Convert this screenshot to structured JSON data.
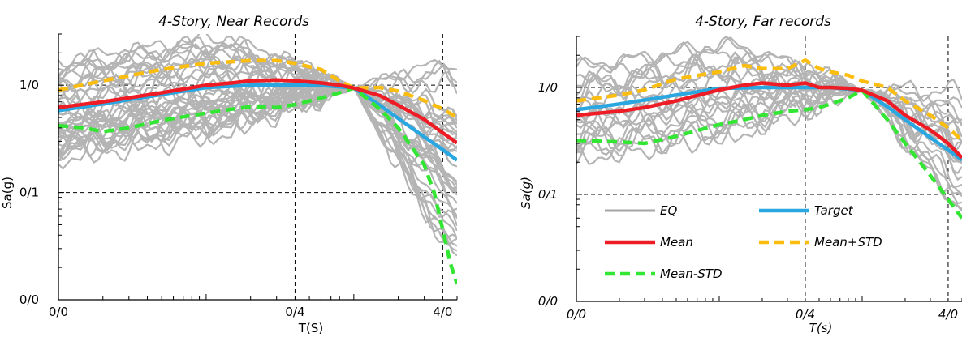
{
  "chart_data": [
    {
      "type": "line",
      "title": "4-Story, Near Records",
      "xlabel": "T(S)",
      "ylabel": "Sa(g)",
      "x_scale": "log",
      "y_scale": "log",
      "xlim": [
        0.01,
        5
      ],
      "ylim": [
        0.01,
        3
      ],
      "x_ticks": [
        {
          "v": 0.01,
          "label": "0/0"
        },
        {
          "v": 0.4,
          "label": "0/4"
        },
        {
          "v": 4,
          "label": "4/0"
        }
      ],
      "y_ticks": [
        {
          "v": 0.01,
          "label": "0/0"
        },
        {
          "v": 0.1,
          "label": "0/1"
        },
        {
          "v": 1,
          "label": "1/0"
        }
      ],
      "grid_x": [
        0.4,
        4
      ],
      "grid_y": [
        0.1,
        1
      ],
      "eq_count": 40,
      "eq_anchor_T": 1.0,
      "eq_anchor_Sa": 0.94,
      "series": [
        {
          "key": "target",
          "color": "#2aa7e0",
          "dash": false,
          "x": [
            0.01,
            0.02,
            0.05,
            0.1,
            0.2,
            0.4,
            0.6,
            1.0,
            1.5,
            2.0,
            3.0,
            4.0,
            5.0
          ],
          "y": [
            0.58,
            0.67,
            0.82,
            0.95,
            1.0,
            1.0,
            1.0,
            0.94,
            0.65,
            0.49,
            0.33,
            0.25,
            0.2
          ]
        },
        {
          "key": "mean",
          "color": "#ee1c25",
          "dash": false,
          "x": [
            0.01,
            0.02,
            0.05,
            0.1,
            0.15,
            0.2,
            0.3,
            0.4,
            0.6,
            0.8,
            1.0,
            1.5,
            2.0,
            3.0,
            4.0,
            5.0
          ],
          "y": [
            0.62,
            0.7,
            0.85,
            1.0,
            1.05,
            1.1,
            1.12,
            1.1,
            1.05,
            1.0,
            0.94,
            0.8,
            0.65,
            0.48,
            0.36,
            0.29
          ]
        },
        {
          "key": "mean_plus_std",
          "color": "#fbbd0f",
          "dash": true,
          "x": [
            0.01,
            0.02,
            0.05,
            0.1,
            0.2,
            0.3,
            0.4,
            0.6,
            0.8,
            1.0,
            1.5,
            2.0,
            3.0,
            4.0,
            5.0
          ],
          "y": [
            0.9,
            1.1,
            1.4,
            1.6,
            1.7,
            1.7,
            1.6,
            1.4,
            1.1,
            0.94,
            0.95,
            0.88,
            0.72,
            0.6,
            0.5
          ]
        },
        {
          "key": "mean_minus_std",
          "color": "#33e633",
          "dash": true,
          "x": [
            0.01,
            0.015,
            0.02,
            0.03,
            0.05,
            0.1,
            0.15,
            0.2,
            0.3,
            0.4,
            0.6,
            0.8,
            1.0,
            1.5,
            2.0,
            3.0,
            3.5,
            4.0,
            4.5,
            5.0
          ],
          "y": [
            0.42,
            0.4,
            0.37,
            0.4,
            0.47,
            0.55,
            0.6,
            0.63,
            0.62,
            0.66,
            0.76,
            0.85,
            0.94,
            0.6,
            0.4,
            0.18,
            0.1,
            0.045,
            0.022,
            0.014
          ]
        }
      ]
    },
    {
      "type": "line",
      "title": "4-Story, Far records",
      "xlabel": "T(s)",
      "ylabel": "Sa(g)",
      "x_scale": "log",
      "y_scale": "log",
      "xlim": [
        0.01,
        5
      ],
      "ylim": [
        0.01,
        3
      ],
      "x_ticks": [
        {
          "v": 0.01,
          "label": "0/0"
        },
        {
          "v": 0.4,
          "label": "0/4"
        },
        {
          "v": 4,
          "label": "4/0"
        }
      ],
      "y_ticks": [
        {
          "v": 0.01,
          "label": "0/0"
        },
        {
          "v": 0.1,
          "label": "0/1"
        },
        {
          "v": 1,
          "label": "1/0"
        }
      ],
      "grid_x": [
        0.4,
        4
      ],
      "grid_y": [
        0.1,
        1
      ],
      "eq_count": 22,
      "eq_anchor_T": 1.0,
      "eq_anchor_Sa": 0.94,
      "legend": {
        "placement": "lower-left",
        "items": [
          {
            "key": "eq",
            "label": "EQ",
            "color": "#a6a6a6",
            "dash": false
          },
          {
            "key": "target",
            "label": "Target",
            "color": "#2aa7e0",
            "dash": false
          },
          {
            "key": "mean",
            "label": "Mean",
            "color": "#ee1c25",
            "dash": false
          },
          {
            "key": "mean_plus_std",
            "label": "Mean+STD",
            "color": "#fbbd0f",
            "dash": true
          },
          {
            "key": "mean_minus_std",
            "label": "Mean-STD",
            "color": "#33e633",
            "dash": true
          }
        ]
      },
      "series": [
        {
          "key": "target",
          "color": "#2aa7e0",
          "dash": false,
          "x": [
            0.01,
            0.02,
            0.05,
            0.1,
            0.2,
            0.4,
            0.6,
            1.0,
            1.5,
            2.0,
            3.0,
            4.0,
            5.0
          ],
          "y": [
            0.62,
            0.7,
            0.85,
            0.98,
            1.0,
            1.0,
            1.0,
            0.94,
            0.66,
            0.5,
            0.34,
            0.26,
            0.21
          ]
        },
        {
          "key": "mean",
          "color": "#ee1c25",
          "dash": false,
          "x": [
            0.01,
            0.02,
            0.03,
            0.05,
            0.1,
            0.15,
            0.2,
            0.3,
            0.4,
            0.5,
            0.6,
            0.8,
            1.0,
            1.5,
            2.0,
            3.0,
            4.0,
            5.0
          ],
          "y": [
            0.55,
            0.6,
            0.65,
            0.75,
            0.95,
            1.05,
            1.1,
            1.05,
            1.1,
            1.0,
            1.0,
            0.98,
            0.94,
            0.75,
            0.55,
            0.4,
            0.3,
            0.22
          ]
        },
        {
          "key": "mean_plus_std",
          "color": "#fbbd0f",
          "dash": true,
          "x": [
            0.01,
            0.02,
            0.03,
            0.05,
            0.1,
            0.15,
            0.2,
            0.3,
            0.4,
            0.5,
            0.6,
            0.8,
            1.0,
            1.5,
            2.0,
            3.0,
            4.0,
            5.0
          ],
          "y": [
            0.75,
            0.85,
            0.95,
            1.2,
            1.4,
            1.6,
            1.5,
            1.5,
            1.8,
            1.5,
            1.4,
            1.3,
            1.15,
            1.0,
            0.75,
            0.55,
            0.42,
            0.32
          ]
        },
        {
          "key": "mean_minus_std",
          "color": "#33e633",
          "dash": true,
          "x": [
            0.01,
            0.02,
            0.03,
            0.05,
            0.1,
            0.15,
            0.2,
            0.3,
            0.4,
            0.5,
            0.6,
            0.8,
            1.0,
            1.5,
            2.0,
            3.0,
            4.0,
            5.0
          ],
          "y": [
            0.32,
            0.31,
            0.3,
            0.35,
            0.45,
            0.5,
            0.55,
            0.6,
            0.62,
            0.65,
            0.7,
            0.8,
            0.94,
            0.5,
            0.3,
            0.15,
            0.09,
            0.06
          ]
        }
      ]
    }
  ]
}
